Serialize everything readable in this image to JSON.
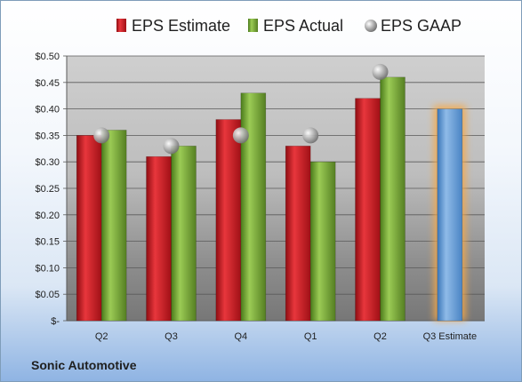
{
  "company": "Sonic Automotive",
  "chart_data": {
    "type": "bar",
    "categories": [
      "Q2",
      "Q3",
      "Q4",
      "Q1",
      "Q2",
      "Q3 Estimate"
    ],
    "series": [
      {
        "name": "EPS Estimate",
        "values": [
          0.35,
          0.31,
          0.38,
          0.33,
          0.42,
          null
        ],
        "color": "#c0141b"
      },
      {
        "name": "EPS Actual",
        "values": [
          0.36,
          0.33,
          0.43,
          0.3,
          0.46,
          null
        ],
        "color": "#6fa52d"
      },
      {
        "name": "EPS GAAP",
        "type": "scatter",
        "values": [
          0.35,
          0.33,
          0.35,
          0.35,
          0.47,
          null
        ],
        "color": "#a8a8a8"
      }
    ],
    "highlight": {
      "category": "Q3 Estimate",
      "value": 0.4,
      "color": "#5b9bd5",
      "glow": "#f5a94a"
    },
    "ylim": [
      0,
      0.5
    ],
    "yticks": [
      0,
      0.05,
      0.1,
      0.15,
      0.2,
      0.25,
      0.3,
      0.35,
      0.4,
      0.45,
      0.5
    ],
    "ytick_labels": [
      "$-",
      "$0.05",
      "$0.10",
      "$0.15",
      "$0.20",
      "$0.25",
      "$0.30",
      "$0.35",
      "$0.40",
      "$0.45",
      "$0.50"
    ],
    "legend_position": "top",
    "grid": true
  }
}
